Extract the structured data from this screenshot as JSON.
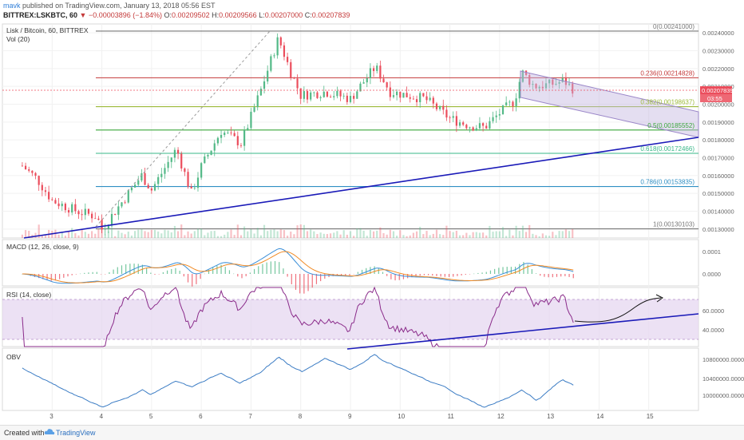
{
  "header": {
    "user": "mavk",
    "published": "published on TradingView.com, January 13, 2018 05:56 EST",
    "symbol": "BITTREX:LSKBTC, 60",
    "change": "▼ −0.00003896 (−1.84%)",
    "open_label": "O:",
    "open": "0.00209502",
    "high_label": "H:",
    "high": "0.00209566",
    "low_label": "L:",
    "low": "0.00207000",
    "close_label": "C:",
    "close": "0.00207839"
  },
  "footer": {
    "created": "Created with",
    "brand": "TradingView"
  },
  "colors": {
    "up": "#53b987",
    "down": "#eb4d5c",
    "trend": "#1a1ab8",
    "channel": "#c3b6e0",
    "macd": "#3b8fd8",
    "signal": "#f08a24",
    "rsi": "#8a2b8a",
    "obv": "#3b7cc4"
  },
  "chart_data": [
    {
      "type": "candlestick",
      "title": "Lisk / Bitcoin, 60, BITTREX",
      "indicator_label": "Vol (20)",
      "x_ticks": [
        "3",
        "4",
        "5",
        "6",
        "7",
        "8",
        "9",
        "10",
        "11",
        "12",
        "13",
        "14",
        "15"
      ],
      "y_ticks": [
        "0.00240000",
        "0.00230000",
        "0.00220000",
        "0.00210000",
        "0.00200000",
        "0.00190000",
        "0.00180000",
        "0.00170000",
        "0.00160000",
        "0.00150000",
        "0.00140000",
        "0.00130000"
      ],
      "ylim": [
        0.00125,
        0.00245
      ],
      "last_price": "0.00207839",
      "countdown": "03:55",
      "fib_levels": [
        {
          "ratio": "0",
          "value": "0.00241000",
          "color": "#787878"
        },
        {
          "ratio": "0.236",
          "value": "0.00214828",
          "color": "#c43a3a"
        },
        {
          "ratio": "0.382",
          "value": "0.00198637",
          "color": "#9cba3a"
        },
        {
          "ratio": "0.5",
          "value": "0.00185552",
          "color": "#3aa63a"
        },
        {
          "ratio": "0.618",
          "value": "0.00172466",
          "color": "#3ab88a"
        },
        {
          "ratio": "0.786",
          "value": "0.00153835",
          "color": "#2f8fc4"
        },
        {
          "ratio": "1",
          "value": "0.00130103",
          "color": "#787878"
        }
      ],
      "close_path": [
        {
          "day": 2.4,
          "price": 0.001655
        },
        {
          "day": 2.7,
          "price": 0.00158
        },
        {
          "day": 3.0,
          "price": 0.00146
        },
        {
          "day": 3.5,
          "price": 0.0014
        },
        {
          "day": 3.9,
          "price": 0.00137
        },
        {
          "day": 4.0,
          "price": 0.0013
        },
        {
          "day": 4.4,
          "price": 0.00145
        },
        {
          "day": 4.8,
          "price": 0.0016
        },
        {
          "day": 5.0,
          "price": 0.00152
        },
        {
          "day": 5.5,
          "price": 0.00175
        },
        {
          "day": 5.8,
          "price": 0.0015
        },
        {
          "day": 6.0,
          "price": 0.00165
        },
        {
          "day": 6.4,
          "price": 0.00185
        },
        {
          "day": 6.8,
          "price": 0.00178
        },
        {
          "day": 7.2,
          "price": 0.00208
        },
        {
          "day": 7.55,
          "price": 0.00237
        },
        {
          "day": 7.8,
          "price": 0.00218
        },
        {
          "day": 8.0,
          "price": 0.00205
        },
        {
          "day": 8.5,
          "price": 0.00207
        },
        {
          "day": 9.0,
          "price": 0.00203
        },
        {
          "day": 9.5,
          "price": 0.00221
        },
        {
          "day": 9.8,
          "price": 0.00207
        },
        {
          "day": 10.5,
          "price": 0.00203
        },
        {
          "day": 11.0,
          "price": 0.00192
        },
        {
          "day": 11.4,
          "price": 0.00188
        },
        {
          "day": 11.7,
          "price": 0.00187
        },
        {
          "day": 12.0,
          "price": 0.00195
        },
        {
          "day": 12.3,
          "price": 0.00202
        },
        {
          "day": 12.45,
          "price": 0.00218
        },
        {
          "day": 12.7,
          "price": 0.0021
        },
        {
          "day": 13.0,
          "price": 0.00211
        },
        {
          "day": 13.3,
          "price": 0.00213
        },
        {
          "day": 13.5,
          "price": 0.00208
        }
      ]
    },
    {
      "type": "line",
      "title": "MACD (12, 26, close, 9)",
      "y_ticks": [
        "0.0001",
        "0.0000"
      ],
      "x_ticks": []
    },
    {
      "type": "line",
      "title": "RSI (14, close)",
      "y_ticks": [
        "60.0000",
        "40.0000"
      ],
      "ylim": [
        15,
        85
      ],
      "x_ticks": []
    },
    {
      "type": "line",
      "title": "OBV",
      "y_ticks": [
        "10800000.0000",
        "10400000.0000",
        "10000000.0000"
      ],
      "x_ticks": []
    }
  ]
}
